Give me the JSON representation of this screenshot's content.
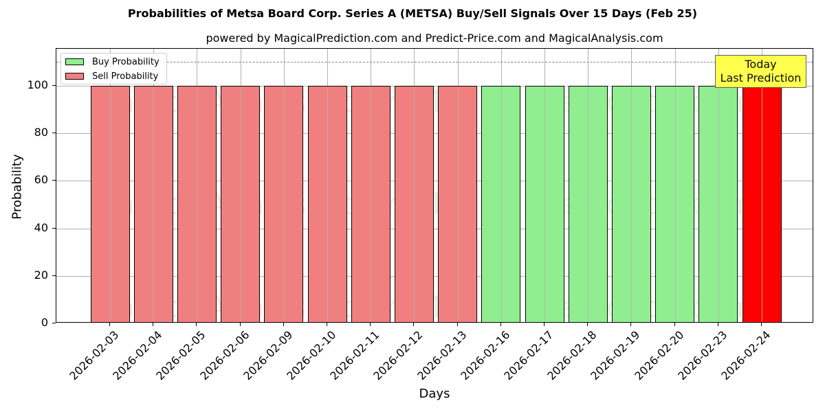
{
  "title": "Probabilities of Metsa Board Corp. Series A (METSA) Buy/Sell Signals Over 15 Days (Feb 25)",
  "subtitle": "powered by MagicalPrediction.com and Predict-Price.com and MagicalAnalysis.com",
  "legend": {
    "buy_label": "Buy Probability",
    "sell_label": "Sell Probability"
  },
  "annotation": {
    "line1": "Today",
    "line2": "Last Prediction"
  },
  "watermarks": [
    "MagicalAnalysis.com",
    "MagicalPrediction.com"
  ],
  "colors": {
    "buy": "#90ee90",
    "sell": "#f08080",
    "today": "#ff0000",
    "annotation_bg": "#ffff44",
    "threshold": "#808080"
  },
  "chart_data": {
    "type": "bar",
    "title": "Probabilities of Metsa Board Corp. Series A (METSA) Buy/Sell Signals Over 15 Days (Feb 25)",
    "subtitle": "powered by MagicalPrediction.com and Predict-Price.com and MagicalAnalysis.com",
    "xlabel": "Days",
    "ylabel": "Probability",
    "ylim": [
      0,
      115
    ],
    "yticks": [
      0,
      20,
      40,
      60,
      80,
      100
    ],
    "grid": true,
    "legend_position": "upper left",
    "threshold_line": 110,
    "categories": [
      "2026-02-03",
      "2026-02-04",
      "2026-02-05",
      "2026-02-06",
      "2026-02-09",
      "2026-02-10",
      "2026-02-11",
      "2026-02-12",
      "2026-02-13",
      "2026-02-16",
      "2026-02-17",
      "2026-02-18",
      "2026-02-19",
      "2026-02-20",
      "2026-02-23",
      "2026-02-24"
    ],
    "values": [
      100,
      100,
      100,
      100,
      100,
      100,
      100,
      100,
      100,
      100,
      100,
      100,
      100,
      100,
      100,
      100
    ],
    "signal": [
      "Sell",
      "Sell",
      "Sell",
      "Sell",
      "Sell",
      "Sell",
      "Sell",
      "Sell",
      "Sell",
      "Buy",
      "Buy",
      "Buy",
      "Buy",
      "Buy",
      "Buy",
      "Sell (Today)"
    ],
    "series": [
      {
        "name": "Buy Probability",
        "values": [
          0,
          0,
          0,
          0,
          0,
          0,
          0,
          0,
          0,
          100,
          100,
          100,
          100,
          100,
          100,
          0
        ]
      },
      {
        "name": "Sell Probability",
        "values": [
          100,
          100,
          100,
          100,
          100,
          100,
          100,
          100,
          100,
          0,
          0,
          0,
          0,
          0,
          0,
          100
        ]
      }
    ],
    "annotations": [
      {
        "text": "Today\nLast Prediction",
        "x": "2026-02-24"
      }
    ]
  }
}
